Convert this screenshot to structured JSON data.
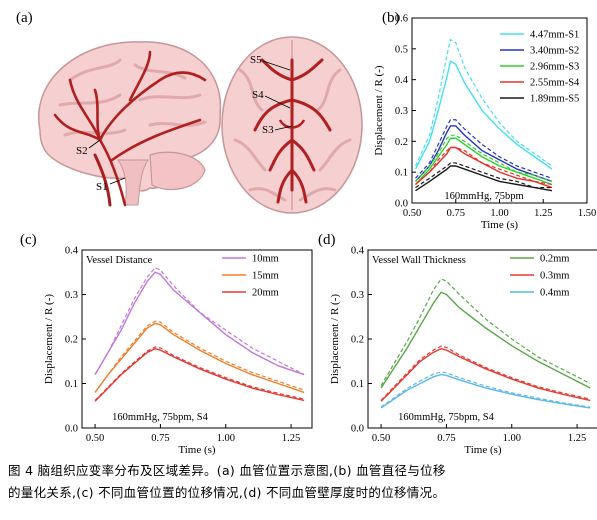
{
  "panels": {
    "a": {
      "letter": "(a)",
      "labels": [
        "S5",
        "S4",
        "S3",
        "S2",
        "S1"
      ]
    },
    "b": {
      "letter": "(b)"
    },
    "c": {
      "letter": "(c)"
    },
    "d": {
      "letter": "(d)"
    }
  },
  "caption": {
    "line1": "图 4  脑组织应变率分布及区域差异。(a) 血管位置示意图,(b) 血管直径与位移",
    "line2": "的量化关系,(c) 不同血管位置的位移情况,(d) 不同血管壁厚度时的位移情况。"
  },
  "chart_data": [
    {
      "id": "b",
      "type": "line",
      "xlabel": "Time (s)",
      "ylabel": "Displacement / R (-)",
      "xlim": [
        0.5,
        1.5
      ],
      "ylim": [
        0.0,
        0.6
      ],
      "xticks": [
        "0.50",
        "0.75",
        "1.00",
        "1.25",
        "1.50"
      ],
      "yticks": [
        "0.0",
        "0.1",
        "0.2",
        "0.3",
        "0.4",
        "0.5",
        "0.6"
      ],
      "legend_title": "",
      "legend_position": "top-right",
      "annotation": "160mmHg, 75bpm",
      "series": [
        {
          "name": "4.47mm-S1",
          "color": "#45e0ee",
          "x": [
            0.52,
            0.6,
            0.65,
            0.7,
            0.72,
            0.75,
            0.8,
            0.9,
            1.0,
            1.1,
            1.2,
            1.3
          ],
          "y": [
            0.11,
            0.2,
            0.3,
            0.41,
            0.46,
            0.45,
            0.39,
            0.3,
            0.24,
            0.19,
            0.15,
            0.11
          ],
          "dashed_y": [
            0.12,
            0.22,
            0.34,
            0.48,
            0.53,
            0.52,
            0.44,
            0.34,
            0.26,
            0.2,
            0.16,
            0.12
          ]
        },
        {
          "name": "3.40mm-S2",
          "color": "#2733c6",
          "x": [
            0.52,
            0.6,
            0.65,
            0.7,
            0.72,
            0.75,
            0.8,
            0.9,
            1.0,
            1.1,
            1.2,
            1.3
          ],
          "y": [
            0.07,
            0.12,
            0.17,
            0.23,
            0.25,
            0.25,
            0.22,
            0.17,
            0.14,
            0.11,
            0.09,
            0.07
          ],
          "dashed_y": [
            0.08,
            0.13,
            0.19,
            0.25,
            0.27,
            0.27,
            0.24,
            0.19,
            0.15,
            0.12,
            0.1,
            0.08
          ]
        },
        {
          "name": "2.96mm-S3",
          "color": "#2fd22f",
          "x": [
            0.52,
            0.6,
            0.65,
            0.7,
            0.72,
            0.75,
            0.8,
            0.9,
            1.0,
            1.1,
            1.2,
            1.3
          ],
          "y": [
            0.06,
            0.11,
            0.15,
            0.19,
            0.21,
            0.21,
            0.19,
            0.15,
            0.12,
            0.1,
            0.08,
            0.06
          ],
          "dashed_y": [
            0.07,
            0.12,
            0.16,
            0.21,
            0.22,
            0.22,
            0.2,
            0.16,
            0.13,
            0.1,
            0.09,
            0.07
          ]
        },
        {
          "name": "2.55mm-S4",
          "color": "#e6332a",
          "x": [
            0.52,
            0.6,
            0.65,
            0.7,
            0.72,
            0.75,
            0.8,
            0.9,
            1.0,
            1.1,
            1.2,
            1.3
          ],
          "y": [
            0.06,
            0.1,
            0.13,
            0.16,
            0.18,
            0.18,
            0.16,
            0.13,
            0.1,
            0.08,
            0.07,
            0.05
          ],
          "dashed_y": [
            0.06,
            0.1,
            0.14,
            0.17,
            0.18,
            0.18,
            0.17,
            0.13,
            0.11,
            0.09,
            0.07,
            0.06
          ]
        },
        {
          "name": "1.89mm-S5",
          "color": "#1a1a1a",
          "x": [
            0.52,
            0.6,
            0.65,
            0.7,
            0.72,
            0.75,
            0.8,
            0.9,
            1.0,
            1.1,
            1.2,
            1.3
          ],
          "y": [
            0.04,
            0.07,
            0.09,
            0.11,
            0.12,
            0.12,
            0.11,
            0.09,
            0.07,
            0.06,
            0.05,
            0.04
          ],
          "dashed_y": [
            0.05,
            0.08,
            0.1,
            0.12,
            0.13,
            0.13,
            0.12,
            0.1,
            0.08,
            0.07,
            0.05,
            0.05
          ]
        }
      ]
    },
    {
      "id": "c",
      "type": "line",
      "xlabel": "Time (s)",
      "ylabel": "Displacement / R (-)",
      "xlim": [
        0.45,
        1.33
      ],
      "ylim": [
        0.0,
        0.4
      ],
      "xticks": [
        "0.50",
        "0.75",
        "1.00",
        "1.25"
      ],
      "yticks": [
        "0.0",
        "0.1",
        "0.2",
        "0.3",
        "0.4"
      ],
      "legend_title": "Vessel Distance",
      "legend_position": "top-right",
      "annotation": "160mmHg, 75bpm, S4",
      "series": [
        {
          "name": "10mm",
          "color": "#c07ad8",
          "x": [
            0.5,
            0.55,
            0.6,
            0.65,
            0.7,
            0.73,
            0.75,
            0.8,
            0.9,
            1.0,
            1.1,
            1.2,
            1.3
          ],
          "y": [
            0.12,
            0.17,
            0.22,
            0.28,
            0.33,
            0.35,
            0.345,
            0.31,
            0.26,
            0.21,
            0.17,
            0.14,
            0.12
          ],
          "dashed_y": [
            0.12,
            0.17,
            0.23,
            0.29,
            0.34,
            0.36,
            0.355,
            0.32,
            0.26,
            0.22,
            0.18,
            0.15,
            0.12
          ]
        },
        {
          "name": "15mm",
          "color": "#f07f2a",
          "x": [
            0.5,
            0.55,
            0.6,
            0.65,
            0.7,
            0.73,
            0.75,
            0.8,
            0.9,
            1.0,
            1.1,
            1.2,
            1.3
          ],
          "y": [
            0.08,
            0.12,
            0.155,
            0.19,
            0.225,
            0.235,
            0.232,
            0.21,
            0.175,
            0.145,
            0.12,
            0.1,
            0.08
          ],
          "dashed_y": [
            0.08,
            0.12,
            0.16,
            0.195,
            0.23,
            0.24,
            0.238,
            0.215,
            0.18,
            0.15,
            0.125,
            0.105,
            0.085
          ]
        },
        {
          "name": "20mm",
          "color": "#e53a33",
          "x": [
            0.5,
            0.55,
            0.6,
            0.65,
            0.7,
            0.73,
            0.75,
            0.8,
            0.9,
            1.0,
            1.1,
            1.2,
            1.3
          ],
          "y": [
            0.06,
            0.09,
            0.12,
            0.145,
            0.17,
            0.178,
            0.175,
            0.16,
            0.133,
            0.11,
            0.09,
            0.075,
            0.062
          ],
          "dashed_y": [
            0.062,
            0.092,
            0.122,
            0.148,
            0.173,
            0.182,
            0.18,
            0.163,
            0.136,
            0.113,
            0.093,
            0.078,
            0.065
          ]
        }
      ]
    },
    {
      "id": "d",
      "type": "line",
      "xlabel": "Time (s)",
      "ylabel": "Displacement / R (-)",
      "xlim": [
        0.45,
        1.33
      ],
      "ylim": [
        0.0,
        0.4
      ],
      "xticks": [
        "0.50",
        "0.75",
        "1.00",
        "1.25"
      ],
      "yticks": [
        "0.0",
        "0.1",
        "0.2",
        "0.3",
        "0.4"
      ],
      "legend_title": "Vessel Wall Thickness",
      "legend_position": "top-right",
      "annotation": "160mmHg, 75bpm, S4",
      "series": [
        {
          "name": "0.2mm",
          "color": "#5aa84a",
          "x": [
            0.5,
            0.55,
            0.6,
            0.65,
            0.7,
            0.73,
            0.75,
            0.8,
            0.9,
            1.0,
            1.1,
            1.2,
            1.3
          ],
          "y": [
            0.09,
            0.135,
            0.18,
            0.23,
            0.28,
            0.305,
            0.3,
            0.27,
            0.225,
            0.185,
            0.15,
            0.12,
            0.09
          ],
          "dashed_y": [
            0.095,
            0.145,
            0.195,
            0.25,
            0.31,
            0.335,
            0.33,
            0.3,
            0.245,
            0.2,
            0.16,
            0.13,
            0.1
          ]
        },
        {
          "name": "0.3mm",
          "color": "#e53a33",
          "x": [
            0.5,
            0.55,
            0.6,
            0.65,
            0.7,
            0.73,
            0.75,
            0.8,
            0.9,
            1.0,
            1.1,
            1.2,
            1.3
          ],
          "y": [
            0.06,
            0.09,
            0.12,
            0.15,
            0.17,
            0.178,
            0.175,
            0.16,
            0.133,
            0.11,
            0.09,
            0.075,
            0.062
          ],
          "dashed_y": [
            0.062,
            0.093,
            0.124,
            0.154,
            0.175,
            0.184,
            0.181,
            0.164,
            0.136,
            0.113,
            0.093,
            0.078,
            0.065
          ]
        },
        {
          "name": "0.4mm",
          "color": "#5cb8e8",
          "x": [
            0.5,
            0.55,
            0.6,
            0.65,
            0.7,
            0.73,
            0.75,
            0.8,
            0.9,
            1.0,
            1.1,
            1.2,
            1.3
          ],
          "y": [
            0.045,
            0.065,
            0.085,
            0.1,
            0.115,
            0.12,
            0.118,
            0.108,
            0.09,
            0.076,
            0.064,
            0.054,
            0.045
          ],
          "dashed_y": [
            0.047,
            0.068,
            0.089,
            0.106,
            0.121,
            0.126,
            0.124,
            0.113,
            0.094,
            0.079,
            0.067,
            0.056,
            0.047
          ]
        }
      ]
    }
  ]
}
